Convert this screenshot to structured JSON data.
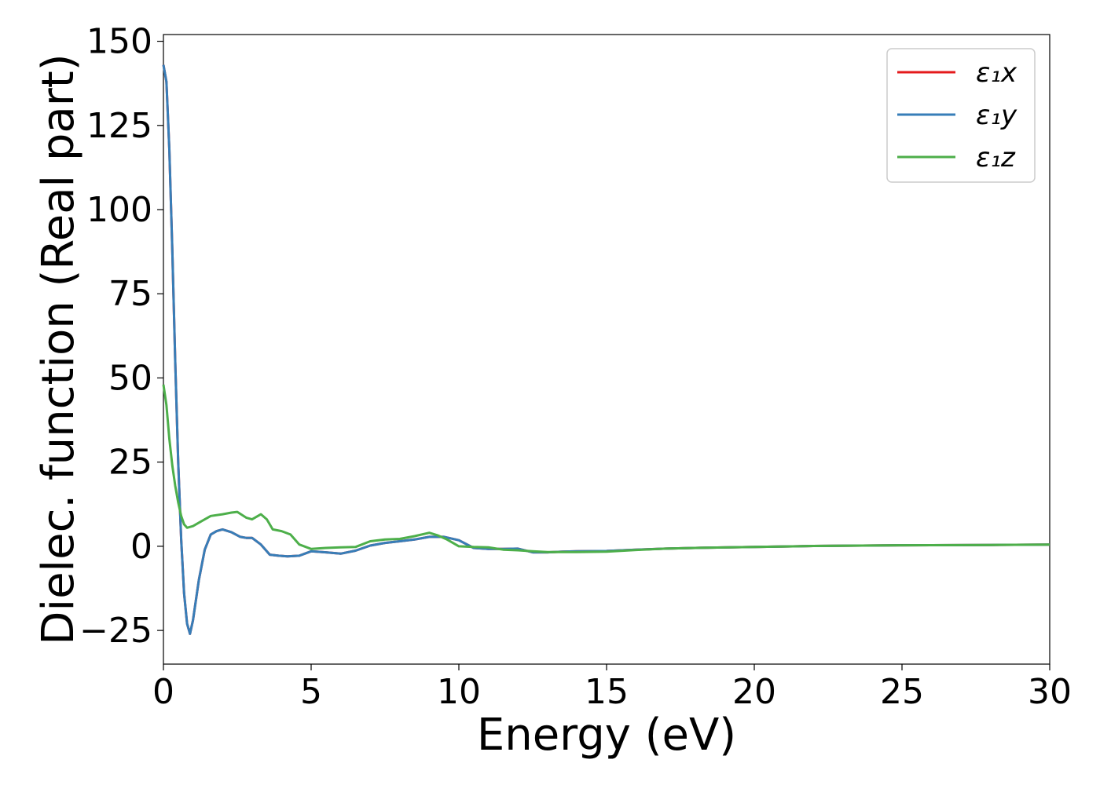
{
  "chart_data": {
    "type": "line",
    "title": "",
    "xlabel": "Energy (eV)",
    "ylabel": "Dielec. function (Real part)",
    "xlim": [
      0,
      30
    ],
    "ylim": [
      -35,
      152
    ],
    "xticks": [
      0,
      5,
      10,
      15,
      20,
      25,
      30
    ],
    "xtick_labels": [
      "0",
      "5",
      "10",
      "15",
      "20",
      "25",
      "30"
    ],
    "yticks": [
      -25,
      0,
      25,
      50,
      75,
      100,
      125,
      150
    ],
    "ytick_labels": [
      "−25",
      "0",
      "25",
      "50",
      "75",
      "100",
      "125",
      "150"
    ],
    "grid": false,
    "legend_position": "top-right",
    "series": [
      {
        "name": "ε₁x",
        "color": "#e41a1c",
        "x": [
          0,
          0.1,
          0.2,
          0.3,
          0.4,
          0.5,
          0.6,
          0.7,
          0.8,
          0.9,
          1.0,
          1.2,
          1.4,
          1.6,
          1.8,
          2.0,
          2.3,
          2.6,
          2.8,
          3.0,
          3.3,
          3.6,
          3.9,
          4.2,
          4.6,
          5.0,
          5.5,
          6.0,
          6.5,
          7.0,
          7.5,
          8.0,
          8.5,
          9.0,
          9.5,
          10.0,
          10.5,
          11.0,
          11.5,
          12.0,
          12.5,
          13.0,
          13.5,
          14.0,
          15.0,
          16.0,
          17.0,
          18.0,
          20.0,
          22.0,
          25.0,
          28.0,
          30.0
        ],
        "y": [
          143,
          138,
          118,
          88,
          55,
          25,
          2,
          -14,
          -23,
          -26,
          -22,
          -10,
          -1,
          3.5,
          4.5,
          5,
          4.2,
          2.8,
          2.5,
          2.5,
          0.5,
          -2.5,
          -2.8,
          -3,
          -2.8,
          -1.5,
          -1.8,
          -2.2,
          -1.3,
          0.2,
          1,
          1.5,
          2,
          2.8,
          2.8,
          1.8,
          -0.5,
          -0.8,
          -0.8,
          -0.7,
          -1.8,
          -1.8,
          -1.6,
          -1.5,
          -1.4,
          -1.0,
          -0.7,
          -0.5,
          -0.2,
          0.1,
          0.3,
          0.4,
          0.5
        ]
      },
      {
        "name": "ε₁y",
        "color": "#377eb8",
        "x": [
          0,
          0.1,
          0.2,
          0.3,
          0.4,
          0.5,
          0.6,
          0.7,
          0.8,
          0.9,
          1.0,
          1.2,
          1.4,
          1.6,
          1.8,
          2.0,
          2.3,
          2.6,
          2.8,
          3.0,
          3.3,
          3.6,
          3.9,
          4.2,
          4.6,
          5.0,
          5.5,
          6.0,
          6.5,
          7.0,
          7.5,
          8.0,
          8.5,
          9.0,
          9.5,
          10.0,
          10.5,
          11.0,
          11.5,
          12.0,
          12.5,
          13.0,
          13.5,
          14.0,
          15.0,
          16.0,
          17.0,
          18.0,
          20.0,
          22.0,
          25.0,
          28.0,
          30.0
        ],
        "y": [
          143,
          138,
          118,
          88,
          55,
          25,
          2,
          -14,
          -23,
          -26,
          -22,
          -10,
          -1,
          3.5,
          4.5,
          5,
          4.2,
          2.8,
          2.5,
          2.5,
          0.5,
          -2.5,
          -2.8,
          -3,
          -2.8,
          -1.5,
          -1.8,
          -2.2,
          -1.3,
          0.2,
          1,
          1.5,
          2,
          2.8,
          2.8,
          1.8,
          -0.5,
          -0.8,
          -0.8,
          -0.7,
          -1.8,
          -1.8,
          -1.6,
          -1.5,
          -1.4,
          -1.0,
          -0.7,
          -0.5,
          -0.2,
          0.1,
          0.3,
          0.4,
          0.5
        ]
      },
      {
        "name": "ε₁z",
        "color": "#4daf4a",
        "x": [
          0,
          0.1,
          0.2,
          0.3,
          0.4,
          0.5,
          0.6,
          0.7,
          0.8,
          1.0,
          1.3,
          1.6,
          2.0,
          2.3,
          2.5,
          2.8,
          3.0,
          3.3,
          3.5,
          3.7,
          4.0,
          4.3,
          4.6,
          5.0,
          5.5,
          6.0,
          6.5,
          7.0,
          7.5,
          8.0,
          8.5,
          9.0,
          9.3,
          9.6,
          10.0,
          10.5,
          11.0,
          11.5,
          12.0,
          12.5,
          13.0,
          14.0,
          15.0,
          16.0,
          17.0,
          18.0,
          20.0,
          22.0,
          25.0,
          28.0,
          30.0
        ],
        "y": [
          48,
          42,
          32,
          24,
          18,
          13,
          9,
          6.5,
          5.5,
          6,
          7.5,
          9,
          9.5,
          10,
          10.2,
          8.5,
          8,
          9.5,
          8,
          5,
          4.5,
          3.5,
          0.5,
          -0.8,
          -0.5,
          -0.3,
          -0.2,
          1.5,
          2,
          2.2,
          3,
          4,
          3.2,
          2,
          0,
          -0.2,
          -0.3,
          -1,
          -1.2,
          -1.5,
          -1.7,
          -1.7,
          -1.6,
          -1.1,
          -0.7,
          -0.5,
          -0.2,
          0.1,
          0.3,
          0.4,
          0.5
        ]
      }
    ]
  }
}
